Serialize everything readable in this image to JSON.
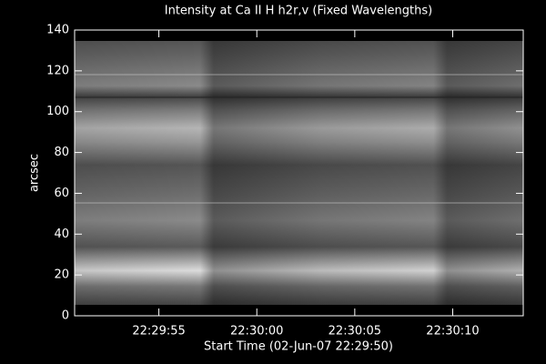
{
  "chart_data": {
    "type": "image",
    "title": "Intensity at Ca II H h2r,v (Fixed Wavelengths)",
    "y_label": "arcsec",
    "x_label": "Start Time (02-Jun-07 22:29:50)",
    "ylim": [
      0,
      140
    ],
    "yticks": [
      0,
      20,
      40,
      60,
      80,
      100,
      120,
      140
    ],
    "xlim": [
      0.7,
      23.6
    ],
    "xticks": [
      {
        "value": 5,
        "label": "22:29:55"
      },
      {
        "value": 10,
        "label": "22:30:00"
      },
      {
        "value": 15,
        "label": "22:30:05"
      },
      {
        "value": 20,
        "label": "22:30:10"
      }
    ]
  }
}
